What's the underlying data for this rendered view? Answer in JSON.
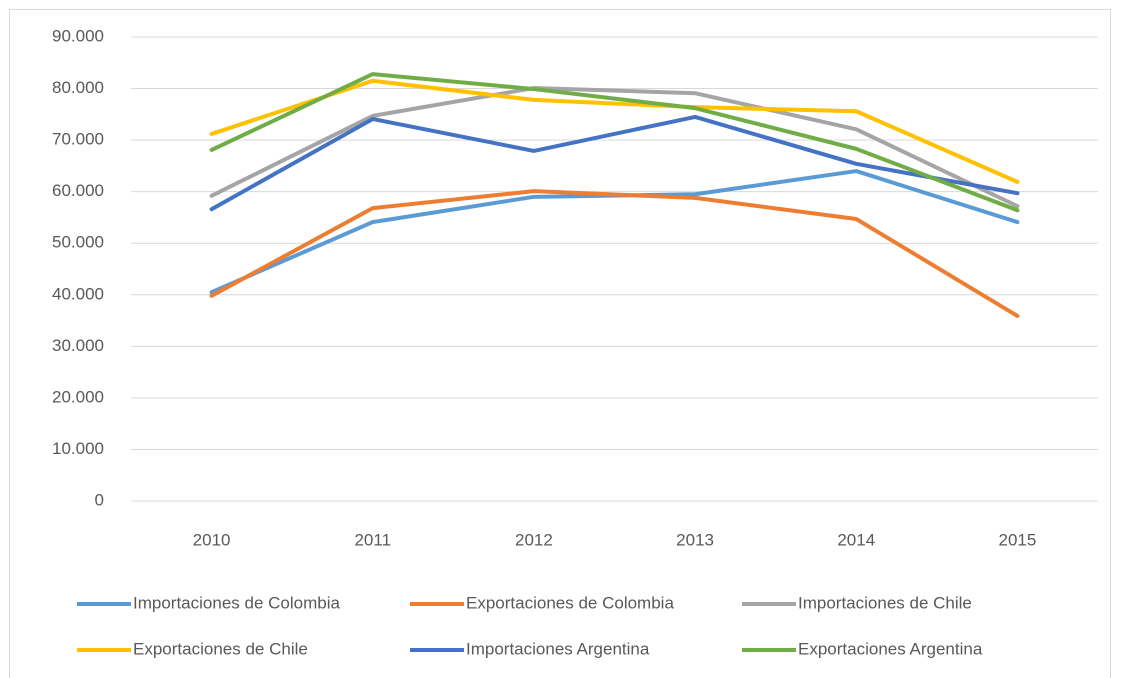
{
  "chart_data": {
    "type": "line",
    "categories": [
      "2010",
      "2011",
      "2012",
      "2013",
      "2014",
      "2015"
    ],
    "series": [
      {
        "name": "Importaciones de Colombia",
        "color": "#5b9bd5",
        "values": [
          40500,
          54100,
          59000,
          59500,
          64000,
          54100
        ]
      },
      {
        "name": "Exportaciones de Colombia",
        "color": "#ed7d31",
        "values": [
          39800,
          56800,
          60100,
          58800,
          54700,
          35900
        ]
      },
      {
        "name": "Importaciones de Chile",
        "color": "#a5a5a5",
        "values": [
          59200,
          74700,
          80100,
          79100,
          72100,
          57200
        ]
      },
      {
        "name": "Exportaciones de Chile",
        "color": "#ffc000",
        "values": [
          71200,
          81500,
          77800,
          76400,
          75600,
          61900
        ]
      },
      {
        "name": "Importaciones Argentina",
        "color": "#4472c4",
        "values": [
          56600,
          74100,
          67900,
          74500,
          65400,
          59700
        ]
      },
      {
        "name": "Exportaciones Argentina",
        "color": "#70ad47",
        "values": [
          68100,
          82800,
          79900,
          76200,
          68300,
          56400
        ]
      }
    ],
    "ylim": [
      0,
      90000
    ],
    "yticks": [
      0,
      {
        "value": 10000,
        "label": "10.000"
      },
      {
        "value": 20000,
        "label": "20.000"
      },
      {
        "value": 30000,
        "label": "30.000"
      },
      {
        "value": 40000,
        "label": "40.000"
      },
      {
        "value": 50000,
        "label": "50.000"
      },
      {
        "value": 60000,
        "label": "60.000"
      },
      {
        "value": 70000,
        "label": "70.000"
      },
      {
        "value": 80000,
        "label": "80.000"
      },
      {
        "value": 90000,
        "label": "90.000"
      }
    ],
    "grid": true,
    "legend": "bottom"
  }
}
